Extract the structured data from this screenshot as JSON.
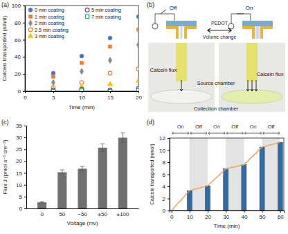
{
  "chart_data": [
    {
      "type": "scatter",
      "title": "(a)",
      "x_label": "Time (min)",
      "y_label": "Calcein transported (nmol)",
      "xlim": [
        0,
        20
      ],
      "xticks": [
        0,
        5,
        10,
        15,
        20
      ],
      "ylim": [
        0,
        100
      ],
      "yticks": [
        0,
        20,
        40,
        60,
        80,
        100
      ],
      "legend": "upper left",
      "x": [
        5,
        10,
        15,
        20
      ],
      "series": [
        {
          "name": "0 min coating",
          "color": "#4472c4",
          "marker": "circle",
          "values": [
            21,
            41,
            62,
            87
          ]
        },
        {
          "name": "1 min coating",
          "color": "#ed7d31",
          "marker": "square",
          "values": [
            17,
            33,
            52,
            72
          ]
        },
        {
          "name": "2 min coating",
          "color": "#8c8c8c",
          "marker": "diamond",
          "values": [
            10,
            23,
            36,
            54
          ]
        },
        {
          "name": "2.5 min coating",
          "color": "#ed7d31",
          "marker": "circle-open",
          "values": [
            4,
            10,
            21,
            26
          ]
        },
        {
          "name": "3 min coating",
          "color": "#ffc000",
          "marker": "triangle",
          "values": [
            2,
            5,
            8,
            12
          ]
        },
        {
          "name": "5 min coating",
          "color": "#7030a0",
          "marker": "circle-open",
          "values": [
            1,
            2,
            1,
            3
          ]
        },
        {
          "name": "7 min coating",
          "color": "#00b050",
          "marker": "square-open",
          "values": [
            0,
            1,
            0,
            1
          ]
        }
      ]
    },
    {
      "type": "bar",
      "title": "(c)",
      "x_label": "Voltage (mv)",
      "y_label": "Flux J (pmol s⁻¹ cm⁻²)",
      "categories": [
        "0",
        "50",
        "−50",
        "±50",
        "±100"
      ],
      "values": [
        2.6,
        15.3,
        16.8,
        25.7,
        29.9
      ],
      "errors": [
        0.3,
        1.0,
        1.0,
        1.6,
        2.0
      ],
      "color": "#707070",
      "ylim": [
        0,
        35
      ],
      "yticks": [
        0,
        5,
        10,
        15,
        20,
        25,
        30,
        35
      ]
    },
    {
      "type": "bar",
      "title": "(d)",
      "x_label": "Time (min)",
      "y_label": "Calcein transported (nmol)",
      "xlim": [
        -1,
        62
      ],
      "xticks": [
        0,
        10,
        20,
        30,
        40,
        50,
        60
      ],
      "ylim": [
        0,
        12
      ],
      "yticks": [
        0,
        2,
        4,
        6,
        8,
        10,
        12
      ],
      "x": [
        0,
        10,
        20,
        30,
        40,
        50,
        60
      ],
      "series": [
        {
          "type": "bar",
          "color": "#2f6aa3",
          "values": [
            null,
            3.3,
            4.1,
            6.9,
            7.6,
            10.5,
            11.3
          ]
        },
        {
          "type": "line",
          "color": "#f0a050",
          "values": [
            0,
            3.3,
            4.1,
            6.9,
            7.6,
            10.5,
            11.3
          ]
        }
      ],
      "phases": [
        {
          "label": "On",
          "start": 0,
          "end": 10
        },
        {
          "label": "Off",
          "start": 10,
          "end": 20
        },
        {
          "label": "On",
          "start": 20,
          "end": 30
        },
        {
          "label": "Off",
          "start": 30,
          "end": 40
        },
        {
          "label": "On",
          "start": 40,
          "end": 50
        },
        {
          "label": "Off",
          "start": 50,
          "end": 60
        }
      ]
    }
  ],
  "diagram": {
    "title": "(b)",
    "switch_off": "Off",
    "switch_on": "On",
    "electrode": "PEDOT",
    "action": "Volume change",
    "source": "Source chamber",
    "flux_left": "Calcein flux",
    "flux_right": "Calcein flux",
    "collection": "Collection chamber"
  }
}
